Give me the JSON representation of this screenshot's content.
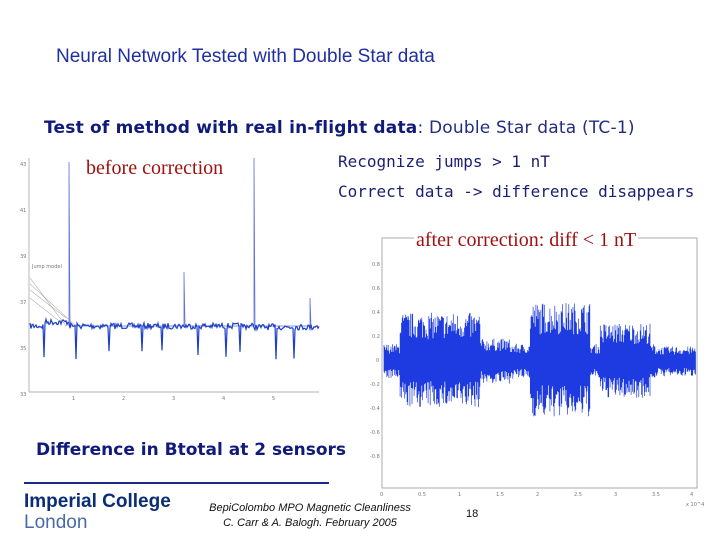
{
  "slide": {
    "title": "Neural Network Tested with Double Star data",
    "subtitle_bold": "Test of method with real in-flight data",
    "subtitle_rest": ": Double Star data (TC-1)",
    "before_label": "before correction",
    "note_line1": "Recognize jumps > 1 nT",
    "note_line2": "Correct data -> difference disappears",
    "after_label": "after correction: diff < 1 nT",
    "diff_caption": "Difference in Btotal at 2 sensors"
  },
  "footer": {
    "logo_line1": "Imperial College",
    "logo_line2": "London",
    "credit_line1": "BepiColombo MPO Magnetic Cleanliness",
    "credit_line2": "C. Carr & A. Balogh. February 2005",
    "page_number": "18"
  },
  "plots": {
    "before": {
      "legend": "Jump model",
      "signal_color": "#1e3fc8",
      "spike_color": "#5f73d8"
    },
    "after": {
      "signal_color": "#1d3be0",
      "axis_exponent": "x 10^4"
    }
  }
}
